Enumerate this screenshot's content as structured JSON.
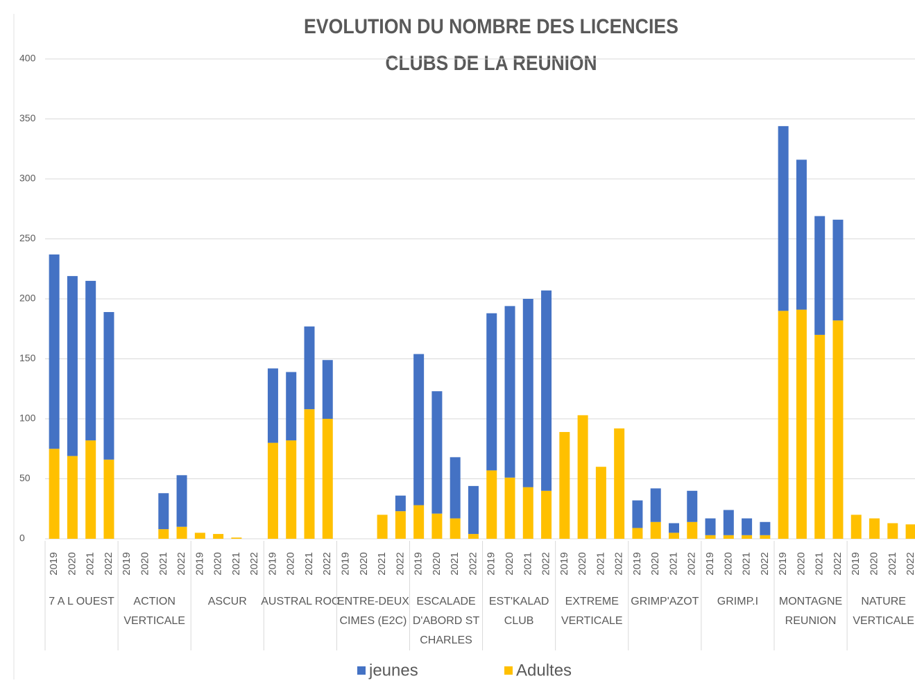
{
  "chart_data": {
    "type": "stacked_bar",
    "title": [
      "EVOLUTION DU NOMBRE DES LICENCIES",
      "CLUBS DE LA REUNION"
    ],
    "groups": [
      [
        "7 A L OUEST"
      ],
      [
        "ACTION",
        "VERTICALE"
      ],
      [
        "ASCUR"
      ],
      [
        "AUSTRAL ROC"
      ],
      [
        "ENTRE-DEUX",
        "CIMES (E2C)"
      ],
      [
        "ESCALADE",
        "D'ABORD ST",
        "CHARLES"
      ],
      [
        "EST'KALAD",
        "CLUB"
      ],
      [
        "EXTREME",
        "VERTICALE"
      ],
      [
        "GRIMP'AZOT"
      ],
      [
        "GRIMP.I"
      ],
      [
        "MONTAGNE",
        "REUNION"
      ],
      [
        "NATURE",
        "VERTICALE"
      ]
    ],
    "categories": [
      "2019",
      "2020",
      "2021",
      "2022",
      "2019",
      "2020",
      "2021",
      "2022",
      "2019",
      "2020",
      "2021",
      "2022",
      "2019",
      "2020",
      "2021",
      "2022",
      "2019",
      "2020",
      "2021",
      "2022",
      "2019",
      "2020",
      "2021",
      "2022",
      "2019",
      "2020",
      "2021",
      "2022",
      "2019",
      "2020",
      "2021",
      "2022",
      "2019",
      "2020",
      "2021",
      "2022",
      "2019",
      "2020",
      "2021",
      "2022",
      "2019",
      "2020",
      "2021",
      "2022",
      "2019",
      "2020",
      "2021",
      "2022"
    ],
    "series": [
      {
        "name": "jeunes",
        "color": "#4472c4",
        "values": [
          162,
          150,
          133,
          123,
          0,
          0,
          30,
          43,
          0,
          0,
          0,
          0,
          62,
          57,
          69,
          49,
          0,
          0,
          0,
          13,
          126,
          102,
          51,
          40,
          131,
          143,
          157,
          167,
          0,
          0,
          0,
          0,
          23,
          28,
          8,
          26,
          14,
          21,
          14,
          11,
          154,
          125,
          99,
          84,
          0,
          0,
          0,
          0
        ]
      },
      {
        "name": "Adultes",
        "color": "#ffc000",
        "values": [
          75,
          69,
          82,
          66,
          0,
          0,
          8,
          10,
          5,
          4,
          1,
          0,
          80,
          82,
          108,
          100,
          0,
          0,
          20,
          23,
          28,
          21,
          17,
          4,
          57,
          51,
          43,
          40,
          89,
          103,
          60,
          92,
          9,
          14,
          5,
          14,
          3,
          3,
          3,
          3,
          190,
          191,
          170,
          182,
          20,
          17,
          13,
          12
        ]
      }
    ],
    "ylim": [
      0,
      400
    ],
    "yticks": [
      0,
      50,
      100,
      150,
      200,
      250,
      300,
      350,
      400
    ],
    "grid": true
  }
}
